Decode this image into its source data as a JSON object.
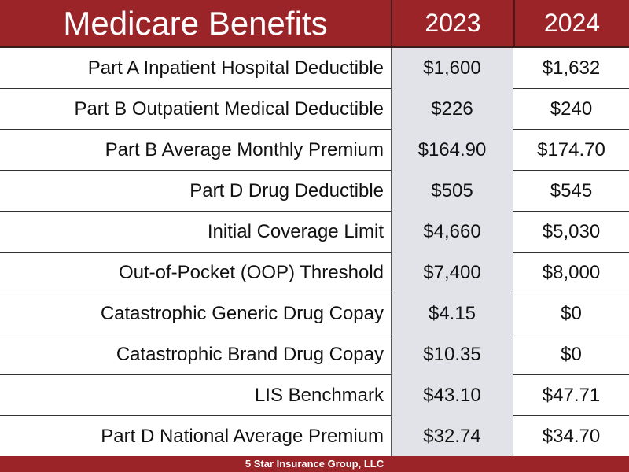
{
  "header": {
    "title": "Medicare Benefits",
    "year1": "2023",
    "year2": "2024"
  },
  "rows": [
    {
      "label": "Part A Inpatient Hospital Deductible",
      "y2023": "$1,600",
      "y2024": "$1,632"
    },
    {
      "label": "Part B Outpatient Medical Deductible",
      "y2023": "$226",
      "y2024": "$240"
    },
    {
      "label": "Part B Average Monthly Premium",
      "y2023": "$164.90",
      "y2024": "$174.70"
    },
    {
      "label": "Part D Drug Deductible",
      "y2023": "$505",
      "y2024": "$545"
    },
    {
      "label": "Initial Coverage Limit",
      "y2023": "$4,660",
      "y2024": "$5,030"
    },
    {
      "label": "Out-of-Pocket (OOP) Threshold",
      "y2023": "$7,400",
      "y2024": "$8,000"
    },
    {
      "label": "Catastrophic Generic Drug Copay",
      "y2023": "$4.15",
      "y2024": "$0"
    },
    {
      "label": "Catastrophic Brand Drug Copay",
      "y2023": "$10.35",
      "y2024": "$0"
    },
    {
      "label": "LIS Benchmark",
      "y2023": "$43.10",
      "y2024": "$47.71"
    },
    {
      "label": "Part D National Average Premium",
      "y2023": "$32.74",
      "y2024": "$34.70"
    }
  ],
  "footer": "5 Star Insurance Group, LLC",
  "colors": {
    "accent": "#9b2429",
    "highlight_column": "#e1e3e9"
  }
}
